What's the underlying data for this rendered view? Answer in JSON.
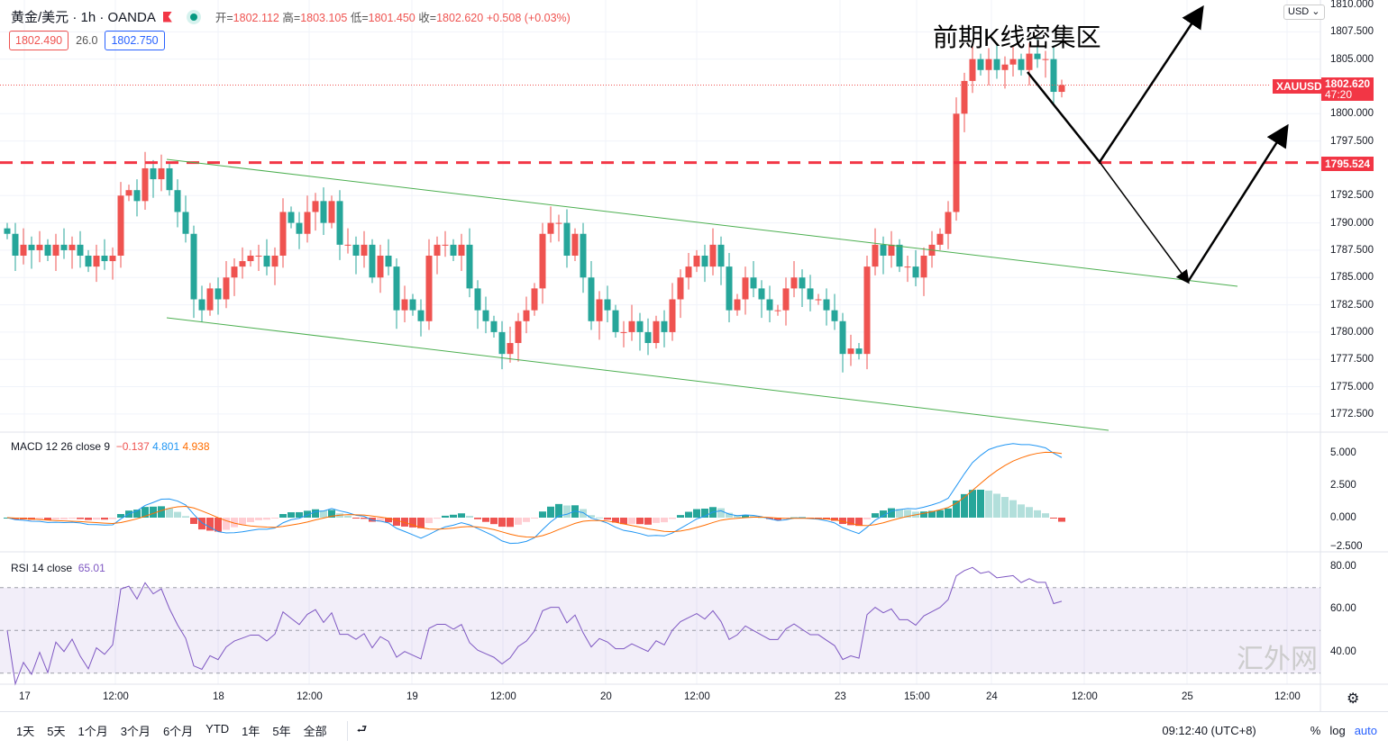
{
  "header": {
    "symbol": "黄金/美元 · 1h · OANDA",
    "open_label": "开=",
    "open": "1802.112",
    "high_label": "高=",
    "high": "1803.105",
    "low_label": "低=",
    "low": "1801.450",
    "close_label": "收=",
    "close": "1802.620",
    "change": "+0.508 (+0.03%)"
  },
  "quotes": {
    "sell": "1802.490",
    "spread": "26.0",
    "buy": "1802.750"
  },
  "annotation": "前期K线密集区",
  "price_axis": {
    "currency": "USD ⌄",
    "labels": [
      "1810.000",
      "1807.500",
      "1805.000",
      "1800.000",
      "1797.500",
      "1792.500",
      "1790.000",
      "1787.500",
      "1785.000",
      "1782.500",
      "1780.000",
      "1777.500",
      "1775.000",
      "1772.500"
    ],
    "symbol_tag": "XAUUSD",
    "last_price": "1802.620",
    "countdown": "47:20",
    "level_tag": "1795.524"
  },
  "macd": {
    "label": "MACD 12 26 close 9",
    "hist": "−0.137",
    "macd": "4.801",
    "signal": "4.938",
    "axis": [
      "5.000",
      "2.500",
      "0.000",
      "−2.500"
    ]
  },
  "rsi": {
    "label": "RSI 14 close",
    "value": "65.01",
    "axis": [
      "80.00",
      "60.00",
      "40.00"
    ]
  },
  "time_axis": [
    "17",
    "12:00",
    "18",
    "12:00",
    "19",
    "12:00",
    "20",
    "12:00",
    "23",
    "15:00",
    "24",
    "12:00",
    "25",
    "12:00"
  ],
  "bottom": {
    "ranges": [
      "1天",
      "5天",
      "1个月",
      "3个月",
      "6个月",
      "YTD",
      "1年",
      "5年",
      "全部"
    ],
    "goto": "⮐",
    "clock": "09:12:40 (UTC+8)",
    "percent": "%",
    "log": "log",
    "auto": "auto"
  },
  "watermark": "汇外网",
  "colors": {
    "up": "#ef5350",
    "down": "#26a69a",
    "channel": "#4caf50",
    "level": "#f23645",
    "macd": "#2196f3",
    "signal": "#ff6d00",
    "rsi": "#7e57c2"
  },
  "chart_data": {
    "type": "candlestick",
    "timeframe": "1h",
    "level": 1795.524,
    "ylim": [
      1771,
      1810.5
    ],
    "closes": [
      1789,
      1787,
      1788,
      1787.5,
      1788,
      1787,
      1788,
      1787.5,
      1788,
      1787,
      1786,
      1787,
      1786.5,
      1787,
      1792.5,
      1793,
      1792,
      1795,
      1794,
      1795,
      1793,
      1791,
      1789,
      1783,
      1782,
      1784,
      1783,
      1785,
      1786,
      1786.5,
      1787,
      1787,
      1786,
      1787,
      1791,
      1790,
      1789,
      1791,
      1792,
      1790,
      1792,
      1788,
      1788,
      1787,
      1788,
      1785,
      1787,
      1786,
      1782,
      1783,
      1782,
      1781,
      1787,
      1788,
      1788,
      1787,
      1788,
      1784,
      1782,
      1781,
      1780,
      1778,
      1779,
      1781,
      1782,
      1784,
      1789,
      1790,
      1790,
      1787,
      1789,
      1785,
      1781,
      1783,
      1782,
      1780,
      1780,
      1781,
      1780,
      1779,
      1781,
      1780,
      1783,
      1785,
      1786,
      1787,
      1786,
      1788,
      1786,
      1782,
      1783,
      1785,
      1784,
      1783,
      1782,
      1782,
      1784,
      1785,
      1784,
      1783,
      1783,
      1782,
      1781,
      1778,
      1778.5,
      1778,
      1786,
      1788,
      1787,
      1788,
      1786,
      1786,
      1785,
      1787,
      1788,
      1789,
      1791,
      1800,
      1803,
      1805,
      1804,
      1805,
      1804,
      1804.5,
      1805,
      1804,
      1805.5,
      1805,
      1805,
      1802,
      1802.62
    ]
  }
}
